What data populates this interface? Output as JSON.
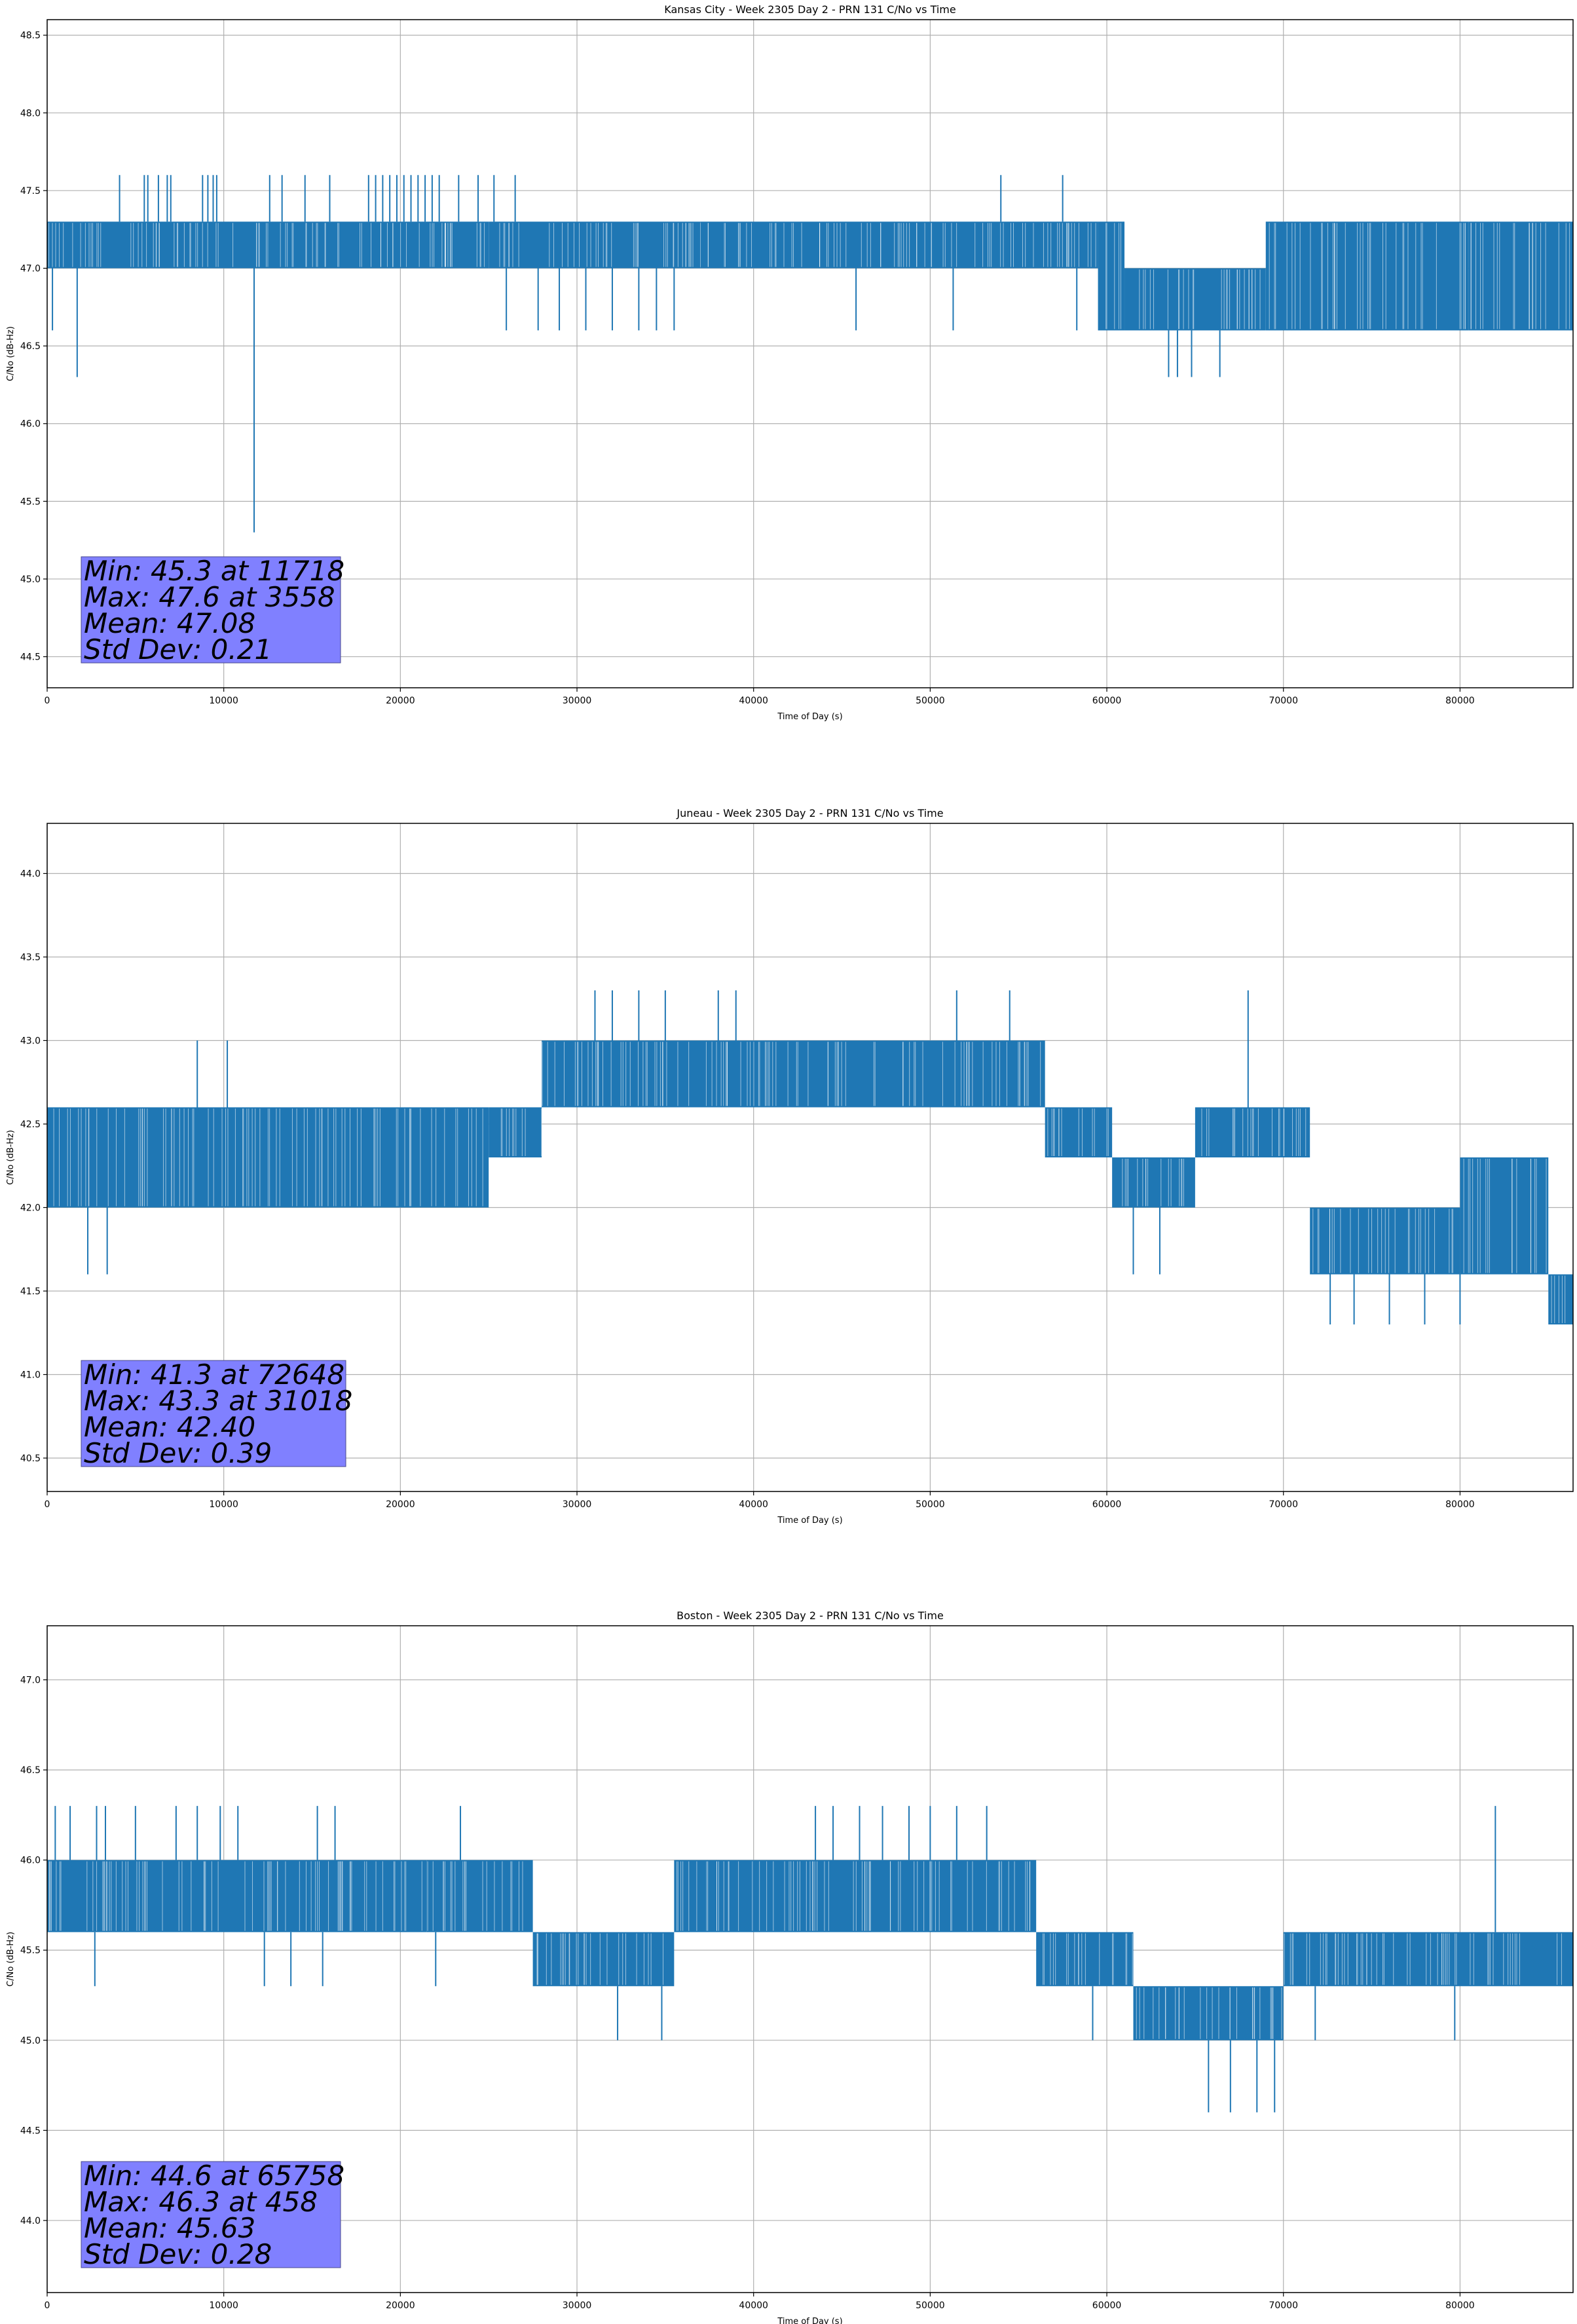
{
  "chart_data": [
    {
      "type": "line",
      "title": "Kansas City - Week 2305 Day 2 - PRN 131 C/No vs Time",
      "xlabel": "Time of Day (s)",
      "ylabel": "C/No (dB-Hz)",
      "xlim": [
        0,
        86400
      ],
      "ylim": [
        44.3,
        48.6
      ],
      "xticks": [
        0,
        10000,
        20000,
        30000,
        40000,
        50000,
        60000,
        70000,
        80000
      ],
      "yticks": [
        44.5,
        45.0,
        45.5,
        46.0,
        46.5,
        47.0,
        47.5,
        48.0,
        48.5
      ],
      "grid": true,
      "color": "#1f77b4",
      "stats": [
        "Min: 45.3 at 11718",
        "Max: 47.6 at 3558",
        "Mean: 47.08",
        "Std Dev: 0.21"
      ],
      "segments": [
        {
          "x": [
            0,
            2000
          ],
          "band": [
            47.0,
            47.3
          ]
        },
        {
          "x": [
            2000,
            25000
          ],
          "band": [
            47.0,
            47.3
          ]
        },
        {
          "x": [
            25000,
            37000
          ],
          "band": [
            47.0,
            47.3
          ]
        },
        {
          "x": [
            37000,
            59500
          ],
          "band": [
            47.0,
            47.3
          ]
        },
        {
          "x": [
            59500,
            61000
          ],
          "band": [
            46.6,
            47.3
          ]
        },
        {
          "x": [
            61000,
            69000
          ],
          "band": [
            46.6,
            47.0
          ]
        },
        {
          "x": [
            69000,
            80500
          ],
          "band": [
            46.6,
            47.3
          ]
        },
        {
          "x": [
            80500,
            86400
          ],
          "band": [
            46.6,
            47.3
          ]
        }
      ],
      "spikes": [
        {
          "x": 4100,
          "y": 47.6
        },
        {
          "x": 5500,
          "y": 47.6
        },
        {
          "x": 5700,
          "y": 47.6
        },
        {
          "x": 6300,
          "y": 47.6
        },
        {
          "x": 6800,
          "y": 47.6
        },
        {
          "x": 7000,
          "y": 47.6
        },
        {
          "x": 8800,
          "y": 47.6
        },
        {
          "x": 9100,
          "y": 47.6
        },
        {
          "x": 9400,
          "y": 47.6
        },
        {
          "x": 9600,
          "y": 47.6
        },
        {
          "x": 12600,
          "y": 47.6
        },
        {
          "x": 13300,
          "y": 47.6
        },
        {
          "x": 14600,
          "y": 47.6
        },
        {
          "x": 16000,
          "y": 47.6
        },
        {
          "x": 18200,
          "y": 47.6
        },
        {
          "x": 18600,
          "y": 47.6
        },
        {
          "x": 19000,
          "y": 47.6
        },
        {
          "x": 19400,
          "y": 47.6
        },
        {
          "x": 19800,
          "y": 47.6
        },
        {
          "x": 20200,
          "y": 47.6
        },
        {
          "x": 20600,
          "y": 47.6
        },
        {
          "x": 21000,
          "y": 47.6
        },
        {
          "x": 21400,
          "y": 47.6
        },
        {
          "x": 21800,
          "y": 47.6
        },
        {
          "x": 22200,
          "y": 47.6
        },
        {
          "x": 23300,
          "y": 47.6
        },
        {
          "x": 24400,
          "y": 47.6
        },
        {
          "x": 25300,
          "y": 47.6
        },
        {
          "x": 26500,
          "y": 47.6
        },
        {
          "x": 54000,
          "y": 47.6
        },
        {
          "x": 57500,
          "y": 47.6
        },
        {
          "x": 300,
          "y": 46.6
        },
        {
          "x": 1700,
          "y": 46.3
        },
        {
          "x": 11718,
          "y": 45.3
        },
        {
          "x": 26000,
          "y": 46.6
        },
        {
          "x": 27800,
          "y": 46.6
        },
        {
          "x": 29000,
          "y": 46.6
        },
        {
          "x": 30500,
          "y": 46.6
        },
        {
          "x": 32000,
          "y": 46.6
        },
        {
          "x": 33500,
          "y": 46.6
        },
        {
          "x": 34500,
          "y": 46.6
        },
        {
          "x": 35500,
          "y": 46.6
        },
        {
          "x": 45800,
          "y": 46.6
        },
        {
          "x": 51300,
          "y": 46.6
        },
        {
          "x": 58300,
          "y": 46.6
        },
        {
          "x": 63500,
          "y": 46.3
        },
        {
          "x": 64000,
          "y": 46.3
        },
        {
          "x": 64800,
          "y": 46.3
        },
        {
          "x": 66400,
          "y": 46.3
        }
      ]
    },
    {
      "type": "line",
      "title": "Juneau - Week 2305 Day 2 - PRN 131 C/No vs Time",
      "xlabel": "Time of Day (s)",
      "ylabel": "C/No (dB-Hz)",
      "xlim": [
        0,
        86400
      ],
      "ylim": [
        40.3,
        44.3
      ],
      "xticks": [
        0,
        10000,
        20000,
        30000,
        40000,
        50000,
        60000,
        70000,
        80000
      ],
      "yticks": [
        40.5,
        41.0,
        41.5,
        42.0,
        42.5,
        43.0,
        43.5,
        44.0
      ],
      "grid": true,
      "color": "#1f77b4",
      "stats": [
        "Min: 41.3 at 72648",
        "Max: 43.3 at 31018",
        "Mean: 42.40",
        "Std Dev: 0.39"
      ],
      "segments": [
        {
          "x": [
            0,
            25000
          ],
          "band": [
            42.0,
            42.6
          ]
        },
        {
          "x": [
            25000,
            28000
          ],
          "band": [
            42.3,
            42.6
          ]
        },
        {
          "x": [
            28000,
            56500
          ],
          "band": [
            42.6,
            43.0
          ]
        },
        {
          "x": [
            56500,
            60300
          ],
          "band": [
            42.3,
            42.6
          ]
        },
        {
          "x": [
            60300,
            65000
          ],
          "band": [
            42.0,
            42.3
          ]
        },
        {
          "x": [
            65000,
            71500
          ],
          "band": [
            42.3,
            42.6
          ]
        },
        {
          "x": [
            71500,
            80000
          ],
          "band": [
            41.6,
            42.0
          ]
        },
        {
          "x": [
            80000,
            85000
          ],
          "band": [
            41.6,
            42.3
          ]
        },
        {
          "x": [
            85000,
            86400
          ],
          "band": [
            41.3,
            41.6
          ]
        }
      ],
      "spikes": [
        {
          "x": 8500,
          "y": 43.0
        },
        {
          "x": 10200,
          "y": 43.0
        },
        {
          "x": 31018,
          "y": 43.3
        },
        {
          "x": 32000,
          "y": 43.3
        },
        {
          "x": 33500,
          "y": 43.3
        },
        {
          "x": 35000,
          "y": 43.3
        },
        {
          "x": 38000,
          "y": 43.3
        },
        {
          "x": 39000,
          "y": 43.3
        },
        {
          "x": 51500,
          "y": 43.3
        },
        {
          "x": 54500,
          "y": 43.3
        },
        {
          "x": 68000,
          "y": 43.3
        },
        {
          "x": 2300,
          "y": 41.6
        },
        {
          "x": 3400,
          "y": 41.6
        },
        {
          "x": 61500,
          "y": 41.6
        },
        {
          "x": 63000,
          "y": 41.6
        },
        {
          "x": 72648,
          "y": 41.3
        },
        {
          "x": 74000,
          "y": 41.3
        },
        {
          "x": 76000,
          "y": 41.3
        },
        {
          "x": 78000,
          "y": 41.3
        },
        {
          "x": 80000,
          "y": 41.3
        }
      ]
    },
    {
      "type": "line",
      "title": "Boston - Week 2305 Day 2 - PRN 131 C/No vs Time",
      "xlabel": "Time of Day (s)",
      "ylabel": "C/No (dB-Hz)",
      "xlim": [
        0,
        86400
      ],
      "ylim": [
        43.6,
        47.3
      ],
      "xticks": [
        0,
        10000,
        20000,
        30000,
        40000,
        50000,
        60000,
        70000,
        80000
      ],
      "yticks": [
        44.0,
        44.5,
        45.0,
        45.5,
        46.0,
        46.5,
        47.0
      ],
      "grid": true,
      "color": "#1f77b4",
      "stats": [
        "Min: 44.6 at 65758",
        "Max: 46.3 at 458",
        "Mean: 45.63",
        "Std Dev: 0.28"
      ],
      "segments": [
        {
          "x": [
            0,
            21500
          ],
          "band": [
            45.6,
            46.0
          ]
        },
        {
          "x": [
            21500,
            27500
          ],
          "band": [
            45.6,
            46.0
          ]
        },
        {
          "x": [
            27500,
            35500
          ],
          "band": [
            45.3,
            45.6
          ]
        },
        {
          "x": [
            35500,
            56000
          ],
          "band": [
            45.6,
            46.0
          ]
        },
        {
          "x": [
            56000,
            61500
          ],
          "band": [
            45.3,
            45.6
          ]
        },
        {
          "x": [
            61500,
            70000
          ],
          "band": [
            45.0,
            45.3
          ]
        },
        {
          "x": [
            70000,
            86400
          ],
          "band": [
            45.3,
            45.6
          ]
        }
      ],
      "spikes": [
        {
          "x": 458,
          "y": 46.3
        },
        {
          "x": 1300,
          "y": 46.3
        },
        {
          "x": 2800,
          "y": 46.3
        },
        {
          "x": 3300,
          "y": 46.3
        },
        {
          "x": 5000,
          "y": 46.3
        },
        {
          "x": 7300,
          "y": 46.3
        },
        {
          "x": 8500,
          "y": 46.3
        },
        {
          "x": 9800,
          "y": 46.3
        },
        {
          "x": 10800,
          "y": 46.3
        },
        {
          "x": 15300,
          "y": 46.3
        },
        {
          "x": 16300,
          "y": 46.3
        },
        {
          "x": 23400,
          "y": 46.3
        },
        {
          "x": 43500,
          "y": 46.3
        },
        {
          "x": 44500,
          "y": 46.3
        },
        {
          "x": 46000,
          "y": 46.3
        },
        {
          "x": 47300,
          "y": 46.3
        },
        {
          "x": 48800,
          "y": 46.3
        },
        {
          "x": 50000,
          "y": 46.3
        },
        {
          "x": 51500,
          "y": 46.3
        },
        {
          "x": 53200,
          "y": 46.3
        },
        {
          "x": 82000,
          "y": 46.3
        },
        {
          "x": 2700,
          "y": 45.3
        },
        {
          "x": 12300,
          "y": 45.3
        },
        {
          "x": 13800,
          "y": 45.3
        },
        {
          "x": 15600,
          "y": 45.3
        },
        {
          "x": 22000,
          "y": 45.3
        },
        {
          "x": 32300,
          "y": 45.0
        },
        {
          "x": 34800,
          "y": 45.0
        },
        {
          "x": 59200,
          "y": 45.0
        },
        {
          "x": 63500,
          "y": 45.0
        },
        {
          "x": 65758,
          "y": 44.6
        },
        {
          "x": 67000,
          "y": 44.6
        },
        {
          "x": 68500,
          "y": 44.6
        },
        {
          "x": 69500,
          "y": 44.6
        },
        {
          "x": 71800,
          "y": 45.0
        },
        {
          "x": 79700,
          "y": 45.0
        }
      ]
    }
  ]
}
